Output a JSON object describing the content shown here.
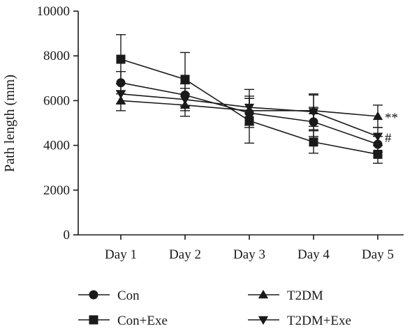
{
  "chart_data": {
    "type": "line",
    "title": "",
    "xlabel": "",
    "ylabel": "Path length (mm)",
    "categories": [
      "Day 1",
      "Day 2",
      "Day 3",
      "Day 4",
      "Day 5"
    ],
    "ylim": [
      0,
      10000
    ],
    "yticks": [
      0,
      2000,
      4000,
      6000,
      8000,
      10000
    ],
    "grid": false,
    "legend_position": "bottom",
    "series": [
      {
        "name": "Con",
        "marker": "circle",
        "values": [
          6800,
          6250,
          5450,
          5050,
          4050
        ],
        "errors": [
          500,
          500,
          650,
          650,
          350
        ]
      },
      {
        "name": "T2DM",
        "marker": "triangle-up",
        "values": [
          6000,
          5800,
          5550,
          5550,
          5300
        ],
        "errors": [
          450,
          500,
          650,
          700,
          500
        ]
      },
      {
        "name": "Con+Exe",
        "marker": "square",
        "values": [
          7850,
          6950,
          5100,
          4150,
          3600
        ],
        "errors": [
          1100,
          1200,
          1000,
          500,
          400
        ]
      },
      {
        "name": "T2DM+Exe",
        "marker": "triangle-down",
        "values": [
          6300,
          6050,
          5700,
          5500,
          4400
        ],
        "errors": [
          450,
          500,
          800,
          800,
          400
        ]
      }
    ],
    "annotations": [
      {
        "text": "**",
        "category": "Day 5",
        "series": "T2DM"
      },
      {
        "text": "#",
        "category": "Day 5",
        "series": "T2DM+Exe"
      }
    ]
  }
}
